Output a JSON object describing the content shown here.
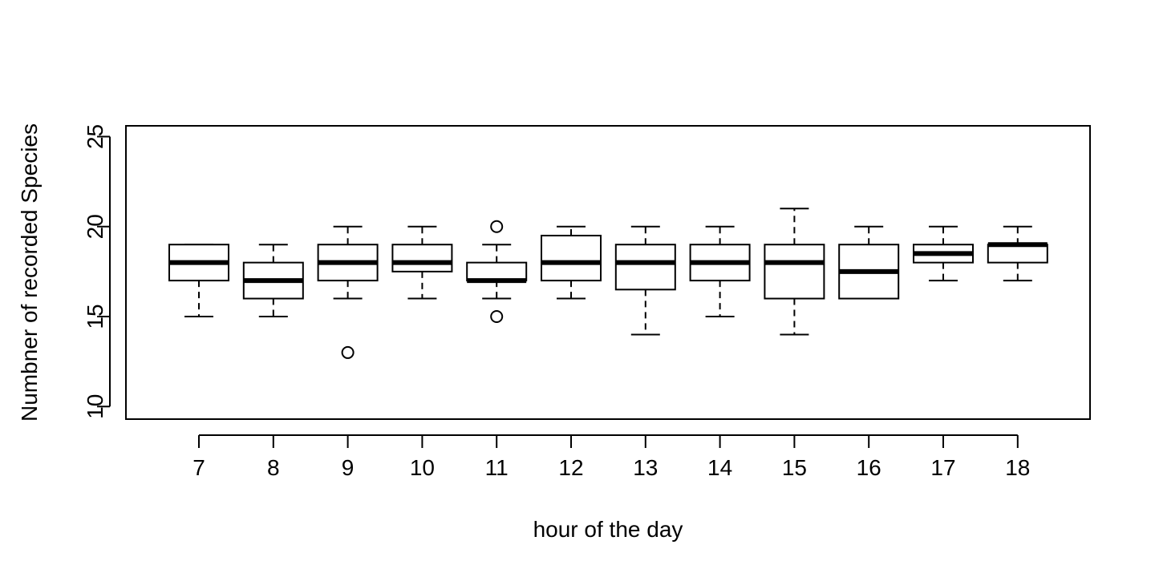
{
  "chart_data": {
    "type": "boxplot",
    "title": "",
    "xlabel": "hour of the day",
    "ylabel": "Numbner of recorded Species",
    "ylim": [
      9.3,
      25.6
    ],
    "yticks": [
      10,
      15,
      20,
      25
    ],
    "grid": false,
    "categories": [
      "7",
      "8",
      "9",
      "10",
      "11",
      "12",
      "13",
      "14",
      "15",
      "16",
      "17",
      "18"
    ],
    "boxes": [
      {
        "category": "7",
        "min": 15,
        "q1": 17,
        "median": 18,
        "q3": 19,
        "max": 19,
        "outliers": []
      },
      {
        "category": "8",
        "min": 15,
        "q1": 16,
        "median": 17,
        "q3": 18,
        "max": 19,
        "outliers": []
      },
      {
        "category": "9",
        "min": 16,
        "q1": 17,
        "median": 18,
        "q3": 19,
        "max": 20,
        "outliers": [
          13
        ]
      },
      {
        "category": "10",
        "min": 16,
        "q1": 17.5,
        "median": 18,
        "q3": 19,
        "max": 20,
        "outliers": []
      },
      {
        "category": "11",
        "min": 16,
        "q1": 17,
        "median": 17,
        "q3": 18,
        "max": 19,
        "outliers": [
          20,
          15
        ]
      },
      {
        "category": "12",
        "min": 16,
        "q1": 17,
        "median": 18,
        "q3": 19.5,
        "max": 20,
        "outliers": []
      },
      {
        "category": "13",
        "min": 14,
        "q1": 16.5,
        "median": 18,
        "q3": 19,
        "max": 20,
        "outliers": []
      },
      {
        "category": "14",
        "min": 15,
        "q1": 17,
        "median": 18,
        "q3": 19,
        "max": 20,
        "outliers": []
      },
      {
        "category": "15",
        "min": 14,
        "q1": 16,
        "median": 18,
        "q3": 19,
        "max": 21,
        "outliers": []
      },
      {
        "category": "16",
        "min": 16,
        "q1": 16,
        "median": 17.5,
        "q3": 19,
        "max": 20,
        "outliers": []
      },
      {
        "category": "17",
        "min": 17,
        "q1": 18,
        "median": 18.5,
        "q3": 19,
        "max": 20,
        "outliers": []
      },
      {
        "category": "18",
        "min": 17,
        "q1": 18,
        "median": 19,
        "q3": 19,
        "max": 20,
        "outliers": []
      }
    ]
  }
}
